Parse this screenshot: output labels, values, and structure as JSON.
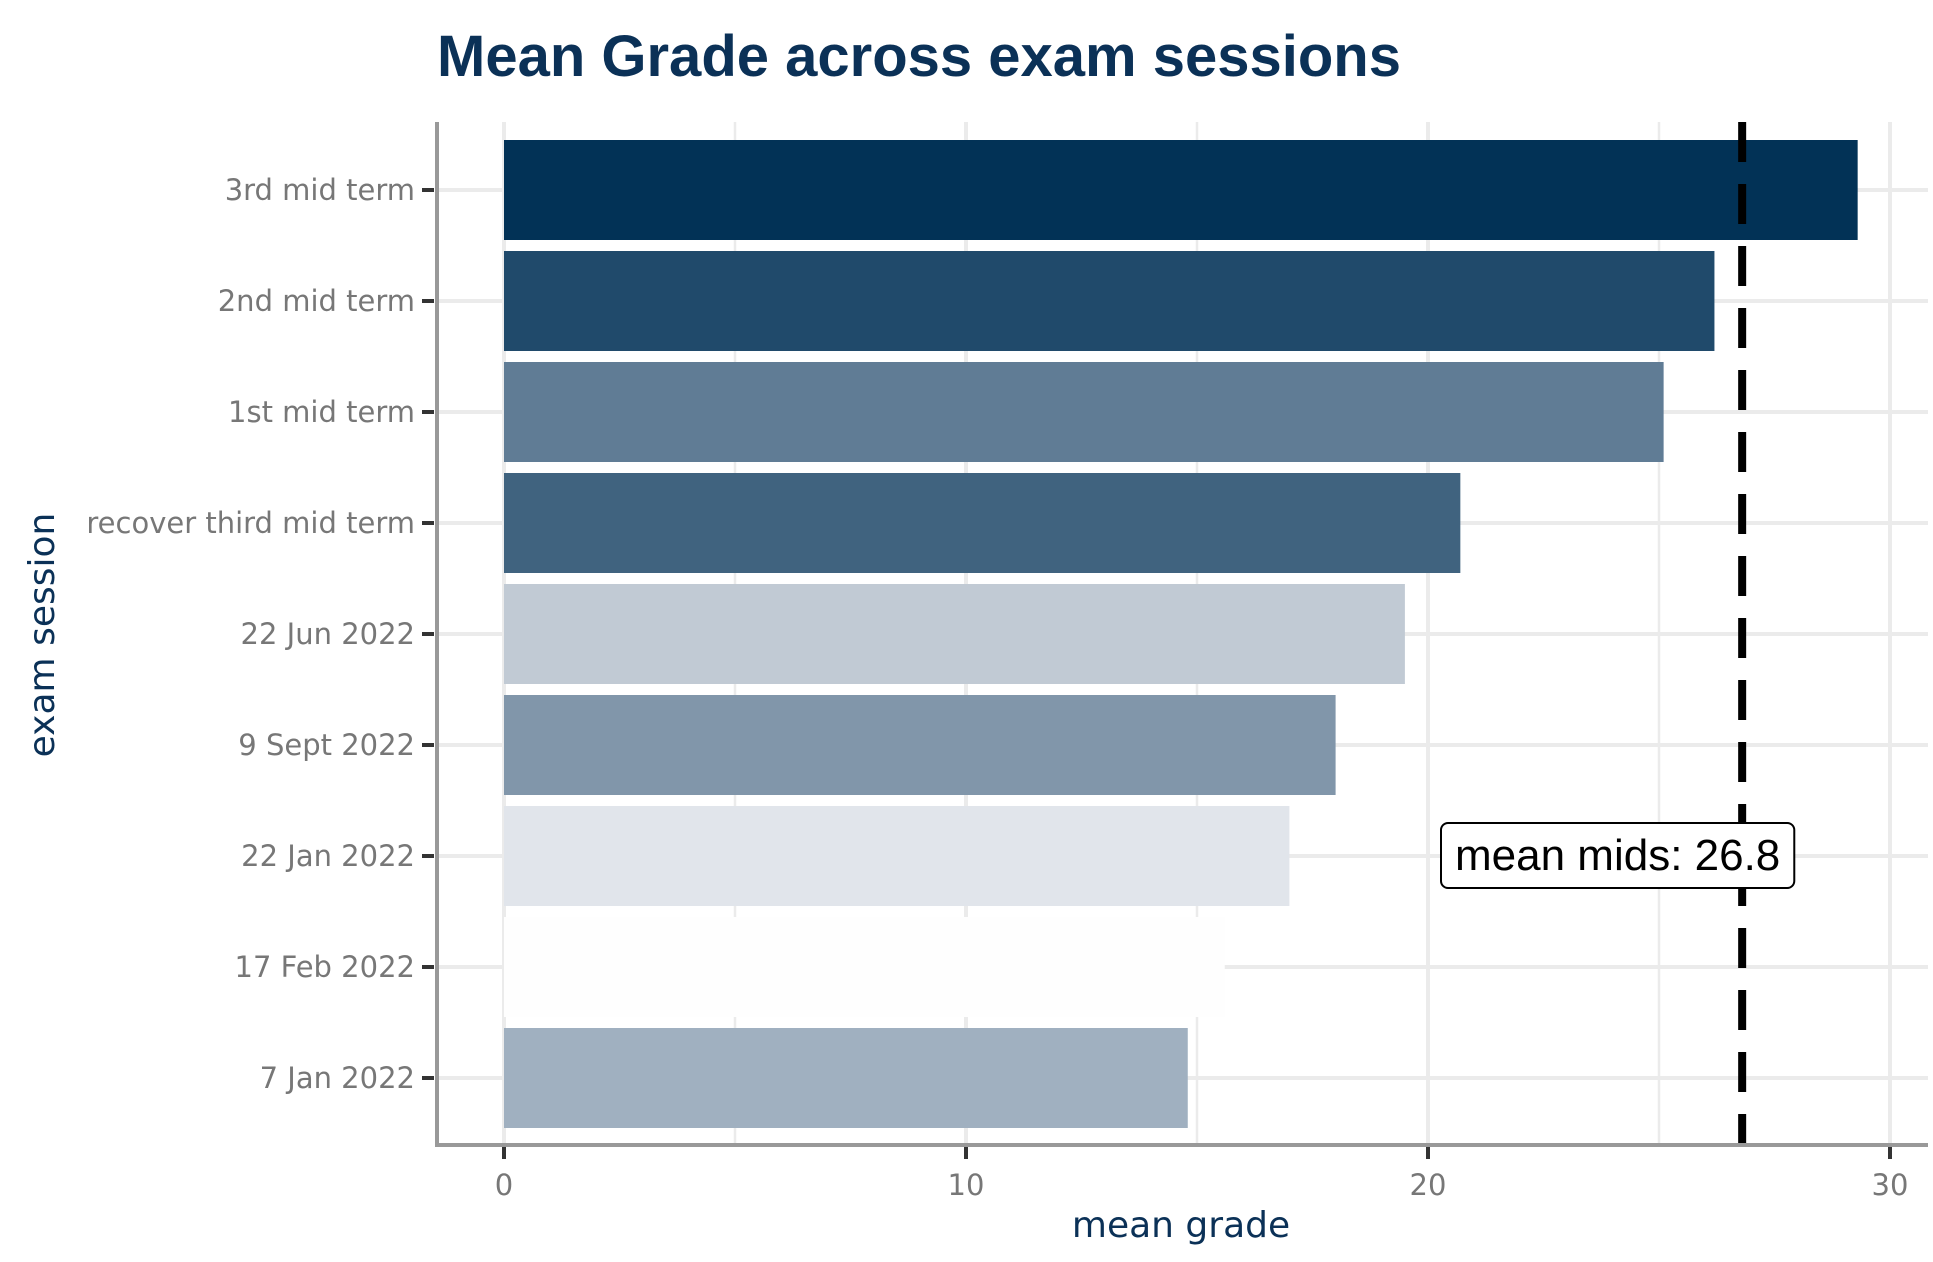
{
  "chart_data": {
    "type": "bar",
    "orientation": "horizontal",
    "title": "Mean Grade across exam sessions",
    "xlabel": "mean grade",
    "ylabel": "exam session",
    "xlim": [
      0,
      30
    ],
    "x_ticks": [
      0,
      10,
      20,
      30
    ],
    "grid": true,
    "categories": [
      "3rd mid term",
      "2nd mid term",
      "1st mid term",
      "recover third mid term",
      "22 Jun 2022",
      "9 Sept 2022",
      "22 Jan 2022",
      "17 Feb 2022",
      "7 Jan 2022"
    ],
    "values": [
      29.3,
      26.2,
      25.1,
      20.7,
      19.5,
      18.0,
      17.0,
      15.6,
      14.8
    ],
    "bar_colors": [
      "#023256",
      "#204a6b",
      "#607c95",
      "#40637f",
      "#c1cad4",
      "#8196aa",
      "#e1e5eb",
      "#fefefe",
      "#a0b0c0"
    ],
    "reference_line": {
      "value": 26.8,
      "style": "dashed",
      "color": "#000000"
    },
    "annotation": {
      "text": "mean mids: 26.8"
    }
  }
}
